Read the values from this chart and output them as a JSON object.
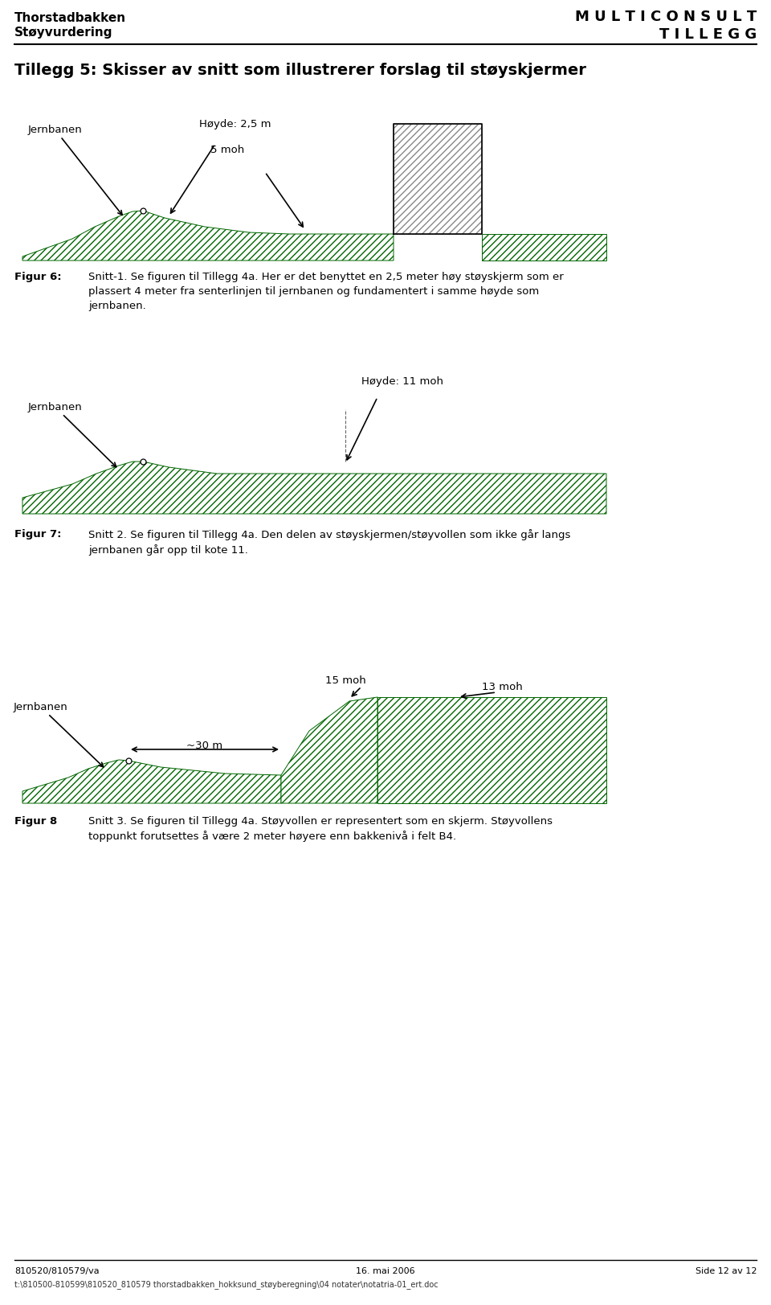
{
  "page_title_left_line1": "Thorstadbakken",
  "page_title_left_line2": "Støyvurdering",
  "page_title_right_line1": "M U L T I C O N S U L T",
  "page_title_right_line2": "T I L L E G G",
  "section_title": "Tillegg 5: Skisser av snitt som illustrerer forslag til støyskjermer",
  "fig6_label": "Figur 6:",
  "fig6_text": "Snitt-1. Se figuren til Tillegg 4a. Her er det benyttet en 2,5 meter høy støyskjerm som er\nplassert 4 meter fra senterlinjen til jernbanen og fundamentert i samme høyde som\njernbanen.",
  "fig7_label": "Figur 7:",
  "fig7_text": "Snitt 2. Se figuren til Tillegg 4a. Den delen av støyskjermen/støyvollen som ikke går langs\njernbanen går opp til kote 11.",
  "fig8_label": "Figur 8",
  "fig8_text": "Snitt 3. Se figuren til Tillegg 4a. Støyvollen er representert som en skjerm. Støyvollens\ntoppunkt forutsettes å være 2 meter høyere enn bakkenivå i felt B4.",
  "footer_left": "810520/810579/va",
  "footer_center": "16. mai 2006",
  "footer_right": "Side 12 av 12",
  "footer_path": "t:\\810500-810599\\810520_810579 thorstadbakken_hokksund_støyberegning\\04 notater\\notatria-01_ert.doc",
  "green_hatch_color": "#006600",
  "gray_hatch_color": "#888888",
  "background": "#ffffff"
}
